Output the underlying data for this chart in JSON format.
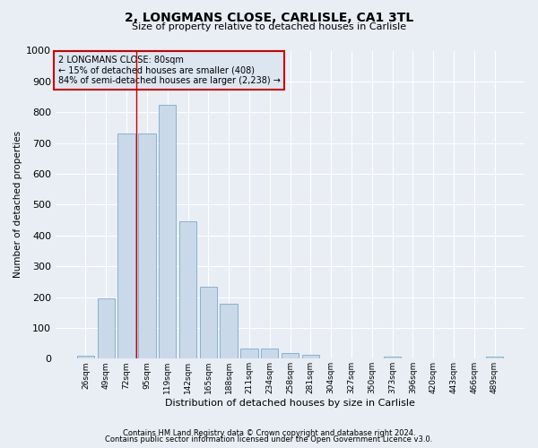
{
  "title1": "2, LONGMANS CLOSE, CARLISLE, CA1 3TL",
  "title2": "Size of property relative to detached houses in Carlisle",
  "xlabel": "Distribution of detached houses by size in Carlisle",
  "ylabel": "Number of detached properties",
  "footer1": "Contains HM Land Registry data © Crown copyright and database right 2024.",
  "footer2": "Contains public sector information licensed under the Open Government Licence v3.0.",
  "annotation_line1": "2 LONGMANS CLOSE: 80sqm",
  "annotation_line2": "← 15% of detached houses are smaller (408)",
  "annotation_line3": "84% of semi-detached houses are larger (2,238) →",
  "bar_color": "#c9d9ea",
  "bar_edge_color": "#7aaac8",
  "vline_color": "#cc0000",
  "bg_color": "#e8eef4",
  "grid_color": "#ffffff",
  "annotation_box_color": "#cc0000",
  "annotation_bg": "#dce6f0",
  "categories": [
    "26sqm",
    "49sqm",
    "72sqm",
    "95sqm",
    "119sqm",
    "142sqm",
    "165sqm",
    "188sqm",
    "211sqm",
    "234sqm",
    "258sqm",
    "281sqm",
    "304sqm",
    "327sqm",
    "350sqm",
    "373sqm",
    "396sqm",
    "420sqm",
    "443sqm",
    "466sqm",
    "489sqm"
  ],
  "values": [
    10,
    195,
    730,
    730,
    825,
    445,
    235,
    178,
    33,
    33,
    18,
    13,
    0,
    0,
    0,
    8,
    0,
    0,
    0,
    0,
    7
  ],
  "vline_x": 2.5,
  "ylim": [
    0,
    1000
  ],
  "yticks": [
    0,
    100,
    200,
    300,
    400,
    500,
    600,
    700,
    800,
    900,
    1000
  ]
}
